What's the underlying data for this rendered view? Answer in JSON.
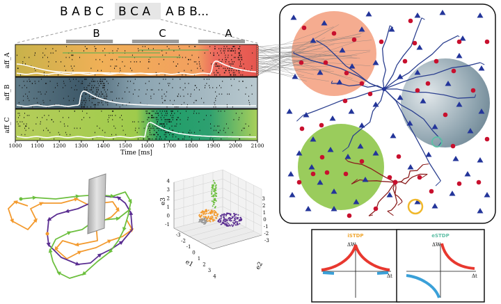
{
  "sequence": {
    "left": "B A B C",
    "highlight": "B C A",
    "right": "A B B..."
  },
  "blocks": [
    "B",
    "C",
    "A"
  ],
  "raster": {
    "row_labels": [
      "aff_A",
      "aff_B",
      "aff_C"
    ],
    "x_ticks": [
      1000,
      1100,
      1200,
      1300,
      1400,
      1500,
      1600,
      1700,
      1800,
      1900,
      2000,
      2100
    ],
    "x_label": "Time [ms]",
    "block_ranges_ms": [
      [
        1300,
        1500
      ],
      [
        1600,
        1800
      ],
      [
        1900,
        2100
      ]
    ]
  },
  "plot3d": {
    "axes": [
      "e1",
      "e2",
      "e3"
    ],
    "ticks_e1": [
      -3,
      -2,
      -1,
      0,
      1,
      2,
      3,
      4
    ],
    "ticks_e2": [
      -3,
      -2,
      -1,
      0,
      1,
      2,
      3
    ],
    "ticks_e3": [
      -1,
      0,
      1,
      2,
      3,
      4
    ]
  },
  "rules": [
    {
      "name": "iSTDP",
      "color": "#f0a832",
      "ylabel": "ΔW",
      "xlabel": "Δt"
    },
    {
      "name": "eSTDP",
      "color": "#5fbfa6",
      "ylabel": "ΔW",
      "xlabel": "Δt"
    }
  ],
  "colors": {
    "orange": "#f39a2e",
    "purple": "#5a2d91",
    "green": "#6cbf3e",
    "blue": "#2b3f8f",
    "red": "#c8102e"
  }
}
